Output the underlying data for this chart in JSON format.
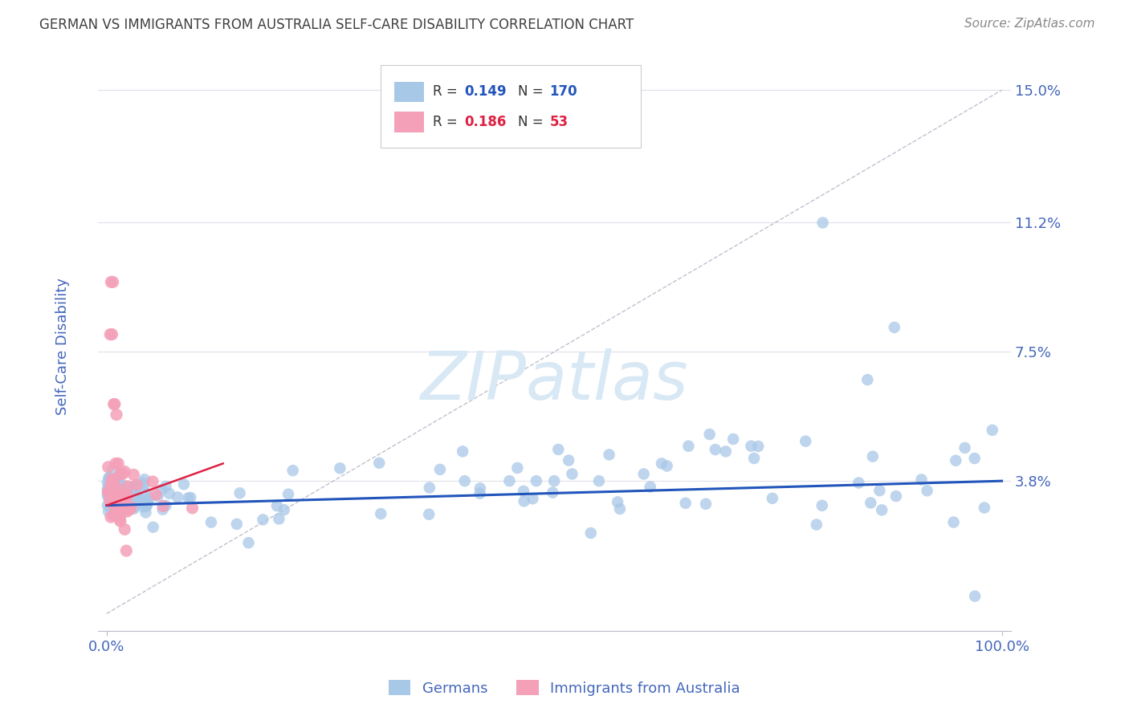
{
  "title": "GERMAN VS IMMIGRANTS FROM AUSTRALIA SELF-CARE DISABILITY CORRELATION CHART",
  "source_text": "Source: ZipAtlas.com",
  "ylabel": "Self-Care Disability",
  "x_min": 0.0,
  "x_max": 1.0,
  "y_min": -0.005,
  "y_max": 0.158,
  "x_tick_labels": [
    "0.0%",
    "100.0%"
  ],
  "y_tick_labels": [
    "3.8%",
    "7.5%",
    "11.2%",
    "15.0%"
  ],
  "y_tick_values": [
    0.038,
    0.075,
    0.112,
    0.15
  ],
  "legend_R_blue": "0.149",
  "legend_N_blue": "170",
  "legend_R_pink": "0.186",
  "legend_N_pink": "53",
  "blue_color": "#A8C8E8",
  "pink_color": "#F4A0B8",
  "trend_blue_color": "#2255BB",
  "trend_pink_color": "#DD2244",
  "diagonal_color": "#C0C0D0",
  "grid_color": "#E0E0EC",
  "label_color": "#4466BB",
  "title_color": "#404040",
  "watermark_color": "#D8E8F4",
  "blue_trend_x0": 0.0,
  "blue_trend_y0": 0.031,
  "blue_trend_x1": 1.0,
  "blue_trend_y1": 0.038,
  "pink_trend_x0": 0.0,
  "pink_trend_y0": 0.031,
  "pink_trend_x1": 0.13,
  "pink_trend_y1": 0.043
}
